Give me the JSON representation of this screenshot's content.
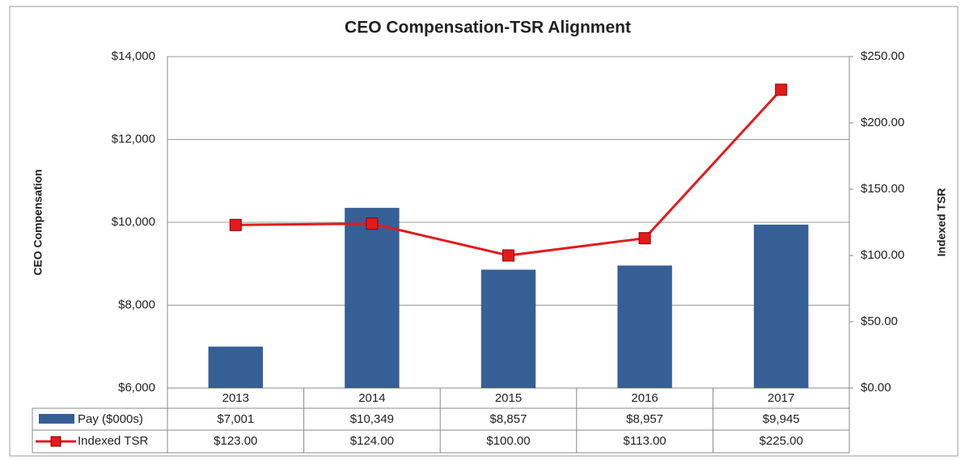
{
  "chart_data": {
    "type": "bar_line",
    "title": "CEO Compensation-TSR Alignment",
    "y_label": "CEO Compensation",
    "y2_label": "Indexed TSR",
    "categories": [
      "2013",
      "2014",
      "2015",
      "2016",
      "2017"
    ],
    "series": [
      {
        "name": "Pay ($000s)",
        "type": "bar",
        "color": "#365f96",
        "values": [
          7001,
          10349,
          8857,
          8957,
          9945
        ],
        "value_labels": [
          "$7,001",
          "$10,349",
          "$8,857",
          "$8,957",
          "$9,945"
        ]
      },
      {
        "name": "Indexed TSR",
        "type": "line",
        "axis": "y2",
        "color": "#e31a1c",
        "values": [
          123,
          124,
          100,
          113,
          225
        ],
        "value_labels": [
          "$123.00",
          "$124.00",
          "$100.00",
          "$113.00",
          "$225.00"
        ]
      }
    ],
    "ylim": [
      6000,
      14000
    ],
    "yticks": [
      {
        "value": 6000,
        "label": "$6,000"
      },
      {
        "value": 8000,
        "label": "$8,000"
      },
      {
        "value": 10000,
        "label": "$10,000"
      },
      {
        "value": 12000,
        "label": "$12,000"
      },
      {
        "value": 14000,
        "label": "$14,000"
      }
    ],
    "y2lim": [
      0,
      250
    ],
    "y2ticks": [
      {
        "value": 0,
        "label": "$0.00"
      },
      {
        "value": 50,
        "label": "$50.00"
      },
      {
        "value": 100,
        "label": "$100.00"
      },
      {
        "value": 150,
        "label": "$150.00"
      },
      {
        "value": 200,
        "label": "$200.00"
      },
      {
        "value": 250,
        "label": "$250.00"
      }
    ],
    "grid": true
  }
}
